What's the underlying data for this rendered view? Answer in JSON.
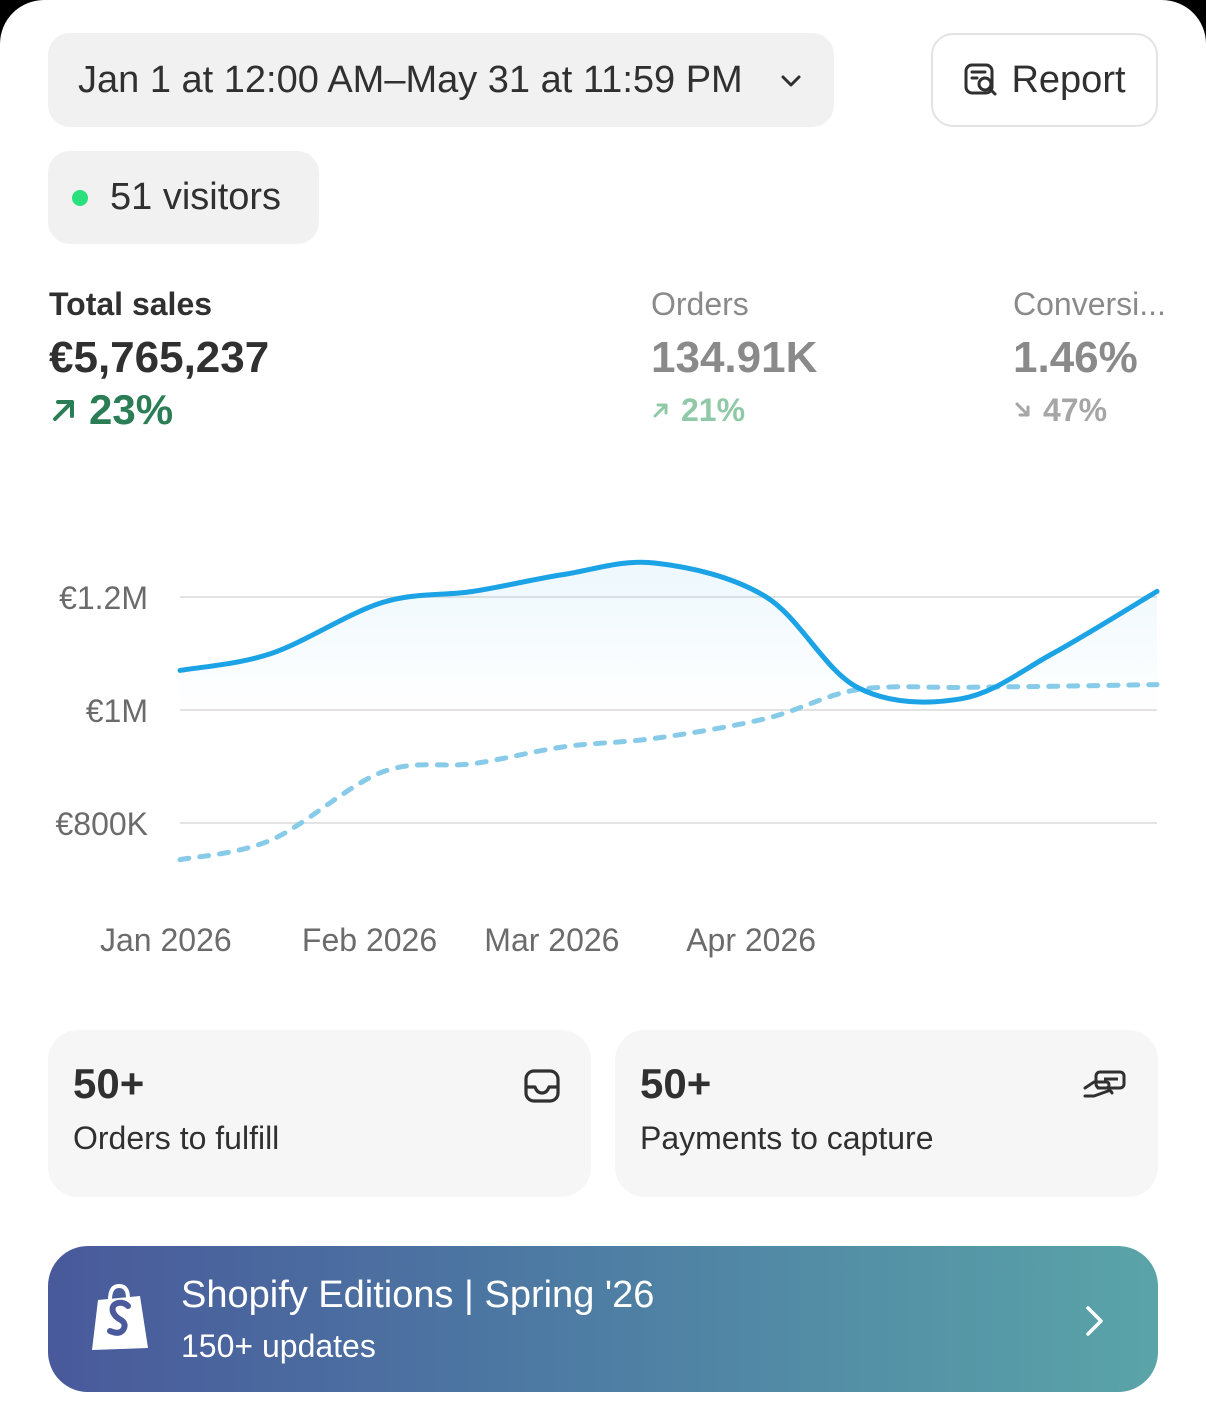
{
  "header": {
    "date_range": "Jan 1 at 12:00 AM–May 31 at 11:59 PM",
    "report_label": "Report",
    "visitors": "51 visitors"
  },
  "metrics": {
    "total_sales": {
      "label": "Total sales",
      "value": "€5,765,237",
      "change": "23%",
      "direction": "up"
    },
    "orders": {
      "label": "Orders",
      "value": "134.91K",
      "change": "21%",
      "direction": "up"
    },
    "conversion": {
      "label": "Conversi...",
      "value": "1.46%",
      "change": "47%",
      "direction": "down"
    }
  },
  "chart_data": {
    "type": "line",
    "x": [
      "2026-01-01",
      "2026-01-15",
      "2026-02-01",
      "2026-02-15",
      "2026-03-01",
      "2026-03-15",
      "2026-04-01",
      "2026-04-15",
      "2026-05-01",
      "2026-05-15",
      "2026-05-31"
    ],
    "series": [
      {
        "values": [
          1070000,
          1100000,
          1190000,
          1210000,
          1240000,
          1260000,
          1200000,
          1040000,
          1020000,
          1100000,
          1210000
        ],
        "color": "#1ba3e5",
        "style": "solid"
      },
      {
        "values": [
          735000,
          770000,
          890000,
          905000,
          935000,
          950000,
          985000,
          1036000,
          1040000,
          1042000,
          1045000
        ],
        "color": "#88cbe8",
        "style": "dashed"
      }
    ],
    "y_ticks": [
      "€800K",
      "€1M",
      "€1.2M"
    ],
    "y_tick_values": [
      800000,
      1000000,
      1200000
    ],
    "x_ticks": [
      "Jan 2026",
      "Feb 2026",
      "Mar 2026",
      "Apr 2026"
    ],
    "x_tick_dates": [
      "2026-01-01",
      "2026-02-01",
      "2026-03-01",
      "2026-04-01"
    ],
    "ylim": [
      720000,
      1290000
    ],
    "grid": true
  },
  "tiles": [
    {
      "count": "50+",
      "label": "Orders to fulfill",
      "icon": "inbox-icon"
    },
    {
      "count": "50+",
      "label": "Payments to capture",
      "icon": "payment-hand-icon"
    }
  ],
  "banner": {
    "title": "Shopify Editions | Spring '26",
    "subtitle": "150+ updates",
    "icon": "shopify-bag-icon"
  }
}
